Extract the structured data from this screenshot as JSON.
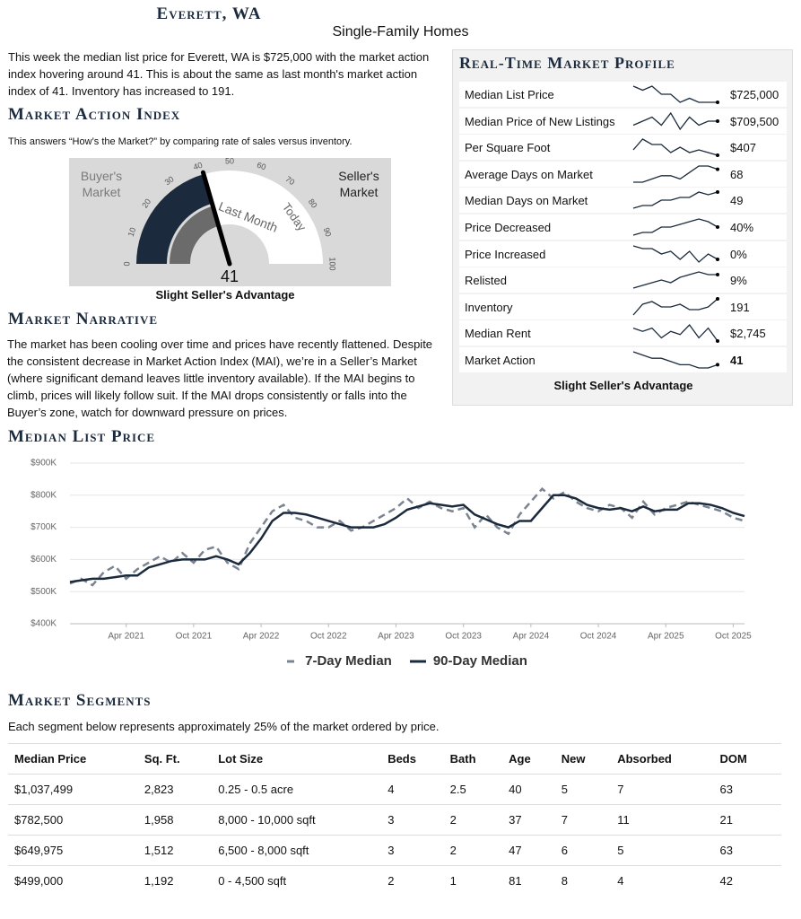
{
  "header": {
    "title": "Everett, WA",
    "subtitle": "Single-Family Homes"
  },
  "intro": "This week the median list price for Everett, WA is $725,000 with the market action index hovering around 41. This is about the same as last month's market action index of 41. Inventory has increased to 191.",
  "mai": {
    "heading": "Market Action Index",
    "description": "This answers “How’s the Market?” by comparing rate of sales versus inventory.",
    "gauge": {
      "buyer_label": "Buyer's Market",
      "seller_label": "Seller's Market",
      "ticks": [
        0,
        10,
        20,
        30,
        40,
        50,
        60,
        70,
        80,
        90,
        100
      ],
      "value": 41,
      "last_month": 41,
      "last_month_label": "Last Month",
      "today_label": "Today"
    },
    "caption": "Slight Seller's Advantage"
  },
  "narrative": {
    "heading": "Market Narrative",
    "text": "The market has been cooling over time and prices have recently flattened. Despite the consistent decrease in Market Action Index (MAI), we’re in a Seller’s Market (where significant demand leaves little inventory available). If the MAI begins to climb, prices will likely follow suit. If the MAI drops consistently or falls into the Buyer’s zone, watch for downward pressure on prices."
  },
  "profile": {
    "heading": "Real-Time Market Profile",
    "rows": [
      {
        "label": "Median List Price",
        "value": "$725,000",
        "trend": [
          8,
          7,
          8,
          6,
          6,
          4,
          5,
          4,
          4,
          4
        ]
      },
      {
        "label": "Median Price of New Listings",
        "value": "$709,500",
        "trend": [
          5,
          6,
          7,
          5,
          8,
          4,
          7,
          5,
          6,
          6
        ]
      },
      {
        "label": "Per Square Foot",
        "value": "$407",
        "trend": [
          4,
          8,
          6,
          6,
          3,
          5,
          3,
          4,
          3,
          2
        ]
      },
      {
        "label": "Average Days on Market",
        "value": "68",
        "trend": [
          3,
          3,
          4,
          5,
          5,
          4,
          6,
          8,
          8,
          7
        ]
      },
      {
        "label": "Median Days on Market",
        "value": "49",
        "trend": [
          2,
          3,
          3,
          5,
          5,
          6,
          6,
          8,
          7,
          8
        ]
      },
      {
        "label": "Price Decreased",
        "value": "40%",
        "trend": [
          2,
          3,
          3,
          5,
          5,
          6,
          7,
          8,
          7,
          5
        ]
      },
      {
        "label": "Price Increased",
        "value": "0%",
        "trend": [
          8,
          7,
          7,
          5,
          6,
          3,
          6,
          2,
          5,
          3
        ]
      },
      {
        "label": "Relisted",
        "value": "9%",
        "trend": [
          2,
          3,
          4,
          5,
          4,
          6,
          7,
          8,
          7,
          7
        ]
      },
      {
        "label": "Inventory",
        "value": "191",
        "trend": [
          3,
          7,
          8,
          6,
          6,
          7,
          5,
          5,
          6,
          9
        ]
      },
      {
        "label": "Median Rent",
        "value": "$2,745",
        "trend": [
          6,
          5,
          6,
          3,
          5,
          4,
          7,
          3,
          6,
          2
        ]
      },
      {
        "label": "Market Action",
        "value": "41",
        "trend": [
          9,
          8,
          7,
          7,
          6,
          5,
          5,
          4,
          4,
          5
        ]
      }
    ],
    "caption": "Slight Seller's Advantage"
  },
  "chart_data": {
    "type": "line",
    "title": "Median List Price",
    "x": [
      "Nov 2020",
      "Dec 2020",
      "Jan 2021",
      "Feb 2021",
      "Mar 2021",
      "Apr 2021",
      "May 2021",
      "Jun 2021",
      "Jul 2021",
      "Aug 2021",
      "Sep 2021",
      "Oct 2021",
      "Nov 2021",
      "Dec 2021",
      "Jan 2022",
      "Feb 2022",
      "Mar 2022",
      "Apr 2022",
      "May 2022",
      "Jun 2022",
      "Jul 2022",
      "Aug 2022",
      "Sep 2022",
      "Oct 2022",
      "Nov 2022",
      "Dec 2022",
      "Jan 2023",
      "Feb 2023",
      "Mar 2023",
      "Apr 2023",
      "May 2023",
      "Jun 2023",
      "Jul 2023",
      "Aug 2023",
      "Sep 2023",
      "Oct 2023",
      "Nov 2023",
      "Dec 2023",
      "Jan 2024",
      "Feb 2024",
      "Mar 2024",
      "Apr 2024",
      "May 2024",
      "Jun 2024",
      "Jul 2024",
      "Aug 2024",
      "Sep 2024",
      "Oct 2024",
      "Nov 2024",
      "Dec 2024",
      "Jan 2025",
      "Feb 2025",
      "Mar 2025",
      "Apr 2025",
      "May 2025",
      "Jun 2025",
      "Jul 2025",
      "Aug 2025",
      "Sep 2025",
      "Oct 2025",
      "Nov 2025"
    ],
    "series": [
      {
        "name": "7-Day Median",
        "color": "#7a8490",
        "style": "dashed",
        "values": [
          525000,
          540000,
          520000,
          560000,
          580000,
          540000,
          570000,
          590000,
          610000,
          590000,
          620000,
          590000,
          630000,
          640000,
          590000,
          570000,
          650000,
          700000,
          750000,
          770000,
          730000,
          720000,
          700000,
          700000,
          720000,
          690000,
          700000,
          720000,
          740000,
          760000,
          790000,
          760000,
          780000,
          760000,
          750000,
          760000,
          700000,
          740000,
          700000,
          680000,
          740000,
          780000,
          820000,
          790000,
          810000,
          780000,
          760000,
          750000,
          770000,
          760000,
          730000,
          780000,
          740000,
          760000,
          770000,
          780000,
          770000,
          760000,
          750000,
          730000,
          720000
        ]
      },
      {
        "name": "90-Day Median",
        "color": "#1b2a3c",
        "style": "solid",
        "values": [
          530000,
          535000,
          540000,
          540000,
          545000,
          550000,
          550000,
          575000,
          585000,
          595000,
          600000,
          600000,
          600000,
          610000,
          600000,
          585000,
          620000,
          665000,
          720000,
          745000,
          745000,
          740000,
          730000,
          720000,
          710000,
          700000,
          700000,
          700000,
          710000,
          730000,
          755000,
          765000,
          775000,
          770000,
          765000,
          770000,
          740000,
          725000,
          710000,
          700000,
          720000,
          720000,
          760000,
          800000,
          800000,
          790000,
          770000,
          760000,
          755000,
          760000,
          750000,
          765000,
          750000,
          755000,
          755000,
          775000,
          775000,
          770000,
          760000,
          745000,
          735000
        ]
      }
    ],
    "ylim": [
      400000,
      900000
    ],
    "yticks": [
      {
        "value": 400000,
        "label": "$400K"
      },
      {
        "value": 500000,
        "label": "$500K"
      },
      {
        "value": 600000,
        "label": "$600K"
      },
      {
        "value": 700000,
        "label": "$700K"
      },
      {
        "value": 800000,
        "label": "$800K"
      },
      {
        "value": 900000,
        "label": "$900K"
      }
    ],
    "xticks": [
      "Apr 2021",
      "Oct 2021",
      "Apr 2022",
      "Oct 2022",
      "Apr 2023",
      "Oct 2023",
      "Apr 2024",
      "Oct 2024",
      "Apr 2025",
      "Oct 2025"
    ],
    "grid": true,
    "legend": "bottom"
  },
  "segments": {
    "heading": "Market Segments",
    "description": "Each segment below represents approximately 25% of the market ordered by price.",
    "columns": [
      "Median Price",
      "Sq. Ft.",
      "Lot Size",
      "Beds",
      "Bath",
      "Age",
      "New",
      "Absorbed",
      "DOM"
    ],
    "rows": [
      [
        "$1,037,499",
        "2,823",
        "0.25 - 0.5 acre",
        "4",
        "2.5",
        "40",
        "5",
        "7",
        "63"
      ],
      [
        "$782,500",
        "1,958",
        "8,000 - 10,000 sqft",
        "3",
        "2",
        "37",
        "7",
        "11",
        "21"
      ],
      [
        "$649,975",
        "1,512",
        "6,500 - 8,000 sqft",
        "3",
        "2",
        "47",
        "6",
        "5",
        "63"
      ],
      [
        "$499,000",
        "1,192",
        "0 - 4,500 sqft",
        "2",
        "1",
        "81",
        "8",
        "4",
        "42"
      ]
    ]
  }
}
